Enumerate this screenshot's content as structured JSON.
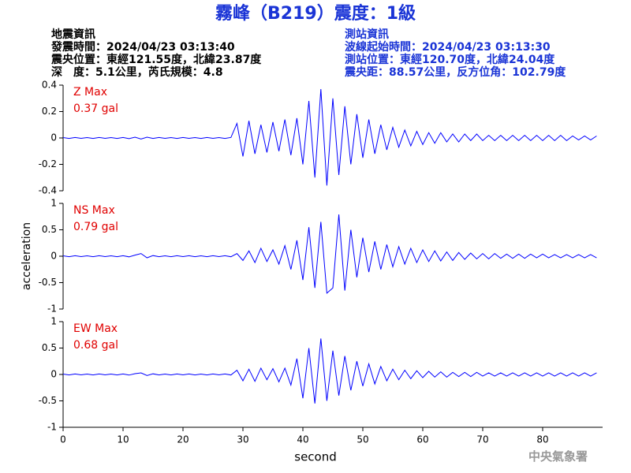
{
  "header": {
    "title": "霧峰（B219）震度：1級"
  },
  "info_left": [
    "地震資訊",
    "發震時間：2024/04/23 03:13:40",
    "震央位置：東經121.55度，北緯23.87度",
    "深　度：5.1公里，芮氏規模：4.8"
  ],
  "info_right": [
    "測站資訊",
    "波線起始時間：2024/04/23 03:13:30",
    "測站位置：東經120.70度，北緯24.04度",
    "震央距：88.57公里，反方位角：102.79度"
  ],
  "ylabel": "acceleration",
  "xlabel": "second",
  "footer": "中央氣象署",
  "chart_data": [
    {
      "type": "line",
      "name": "Z Max",
      "annotation": "0.37 gal",
      "color": "#0000ff",
      "xlim": [
        0,
        90
      ],
      "ylim": [
        -0.4,
        0.4
      ],
      "yticks": [
        -0.4,
        -0.2,
        0,
        0.2,
        0.4
      ],
      "x": [
        0,
        1,
        2,
        3,
        4,
        5,
        6,
        7,
        8,
        9,
        10,
        11,
        12,
        13,
        14,
        15,
        16,
        17,
        18,
        19,
        20,
        21,
        22,
        23,
        24,
        25,
        26,
        27,
        28,
        29,
        30,
        31,
        32,
        33,
        34,
        35,
        36,
        37,
        38,
        39,
        40,
        41,
        42,
        43,
        44,
        45,
        46,
        47,
        48,
        49,
        50,
        51,
        52,
        53,
        54,
        55,
        56,
        57,
        58,
        59,
        60,
        61,
        62,
        63,
        64,
        65,
        66,
        67,
        68,
        69,
        70,
        71,
        72,
        73,
        74,
        75,
        76,
        77,
        78,
        79,
        80,
        81,
        82,
        83,
        84,
        85,
        86,
        87,
        88,
        89
      ],
      "values": [
        0.003,
        -0.004,
        0.004,
        -0.003,
        0.003,
        -0.004,
        0.004,
        -0.003,
        0.003,
        -0.004,
        0.004,
        -0.005,
        0.006,
        -0.008,
        0.006,
        -0.004,
        0.004,
        -0.003,
        0.003,
        -0.004,
        0.004,
        -0.003,
        0.003,
        -0.004,
        0.004,
        -0.003,
        0.003,
        -0.004,
        0.004,
        0.11,
        -0.14,
        0.13,
        -0.12,
        0.1,
        -0.11,
        0.12,
        -0.1,
        0.14,
        -0.13,
        0.15,
        -0.2,
        0.28,
        -0.3,
        0.37,
        -0.36,
        0.3,
        -0.28,
        0.24,
        -0.2,
        0.18,
        -0.15,
        0.14,
        -0.12,
        0.1,
        -0.09,
        0.08,
        -0.07,
        0.06,
        -0.06,
        0.05,
        -0.05,
        0.04,
        -0.04,
        0.04,
        -0.03,
        0.03,
        -0.03,
        0.03,
        -0.02,
        0.03,
        -0.02,
        0.02,
        -0.02,
        0.02,
        -0.02,
        0.02,
        -0.02,
        0.02,
        -0.02,
        0.02,
        -0.02,
        0.02,
        -0.02,
        0.02,
        -0.02,
        0.015,
        -0.015,
        0.015,
        -0.015,
        0.015
      ]
    },
    {
      "type": "line",
      "name": "NS Max",
      "annotation": "0.79 gal",
      "color": "#0000ff",
      "xlim": [
        0,
        90
      ],
      "ylim": [
        -1,
        1
      ],
      "yticks": [
        -1,
        -0.5,
        0,
        0.5,
        1
      ],
      "x": [
        0,
        1,
        2,
        3,
        4,
        5,
        6,
        7,
        8,
        9,
        10,
        11,
        12,
        13,
        14,
        15,
        16,
        17,
        18,
        19,
        20,
        21,
        22,
        23,
        24,
        25,
        26,
        27,
        28,
        29,
        30,
        31,
        32,
        33,
        34,
        35,
        36,
        37,
        38,
        39,
        40,
        41,
        42,
        43,
        44,
        45,
        46,
        47,
        48,
        49,
        50,
        51,
        52,
        53,
        54,
        55,
        56,
        57,
        58,
        59,
        60,
        61,
        62,
        63,
        64,
        65,
        66,
        67,
        68,
        69,
        70,
        71,
        72,
        73,
        74,
        75,
        76,
        77,
        78,
        79,
        80,
        81,
        82,
        83,
        84,
        85,
        86,
        87,
        88,
        89
      ],
      "values": [
        0.008,
        -0.01,
        0.01,
        -0.008,
        0.008,
        -0.01,
        0.01,
        -0.008,
        0.008,
        -0.01,
        0.01,
        -0.012,
        0.02,
        0.05,
        -0.03,
        0.012,
        -0.01,
        0.008,
        -0.01,
        0.01,
        -0.008,
        0.01,
        -0.01,
        0.008,
        -0.01,
        0.01,
        -0.008,
        0.01,
        -0.01,
        0.05,
        -0.08,
        0.1,
        -0.12,
        0.15,
        -0.1,
        0.12,
        -0.15,
        0.2,
        -0.25,
        0.3,
        -0.45,
        0.55,
        -0.6,
        0.65,
        -0.7,
        -0.6,
        0.79,
        -0.65,
        0.5,
        -0.4,
        0.35,
        -0.3,
        0.28,
        -0.25,
        0.22,
        -0.2,
        0.18,
        -0.15,
        0.15,
        -0.12,
        0.12,
        -0.1,
        0.1,
        -0.09,
        0.08,
        -0.08,
        0.07,
        -0.06,
        0.06,
        -0.05,
        0.05,
        -0.05,
        0.05,
        -0.04,
        0.04,
        -0.04,
        0.04,
        -0.04,
        0.04,
        -0.03,
        0.04,
        -0.03,
        0.03,
        -0.03,
        0.03,
        -0.03,
        0.03,
        -0.03,
        0.03,
        -0.03
      ]
    },
    {
      "type": "line",
      "name": "EW Max",
      "annotation": "0.68 gal",
      "color": "#0000ff",
      "xlim": [
        0,
        90
      ],
      "ylim": [
        -1,
        1
      ],
      "yticks": [
        -1,
        -0.5,
        0,
        0.5,
        1
      ],
      "xticks": [
        0,
        10,
        20,
        30,
        40,
        50,
        60,
        70,
        80
      ],
      "x": [
        0,
        1,
        2,
        3,
        4,
        5,
        6,
        7,
        8,
        9,
        10,
        11,
        12,
        13,
        14,
        15,
        16,
        17,
        18,
        19,
        20,
        21,
        22,
        23,
        24,
        25,
        26,
        27,
        28,
        29,
        30,
        31,
        32,
        33,
        34,
        35,
        36,
        37,
        38,
        39,
        40,
        41,
        42,
        43,
        44,
        45,
        46,
        47,
        48,
        49,
        50,
        51,
        52,
        53,
        54,
        55,
        56,
        57,
        58,
        59,
        60,
        61,
        62,
        63,
        64,
        65,
        66,
        67,
        68,
        69,
        70,
        71,
        72,
        73,
        74,
        75,
        76,
        77,
        78,
        79,
        80,
        81,
        82,
        83,
        84,
        85,
        86,
        87,
        88,
        89
      ],
      "values": [
        0.008,
        -0.01,
        0.01,
        -0.008,
        0.008,
        -0.01,
        0.01,
        -0.008,
        0.008,
        -0.01,
        0.01,
        -0.012,
        0.015,
        0.03,
        -0.02,
        0.012,
        -0.01,
        0.008,
        -0.01,
        0.01,
        -0.008,
        0.01,
        -0.01,
        0.008,
        -0.01,
        0.01,
        -0.008,
        0.01,
        -0.01,
        0.08,
        -0.12,
        0.1,
        -0.13,
        0.12,
        -0.1,
        0.11,
        -0.14,
        0.12,
        -0.2,
        0.3,
        -0.45,
        0.5,
        -0.55,
        0.68,
        -0.5,
        0.45,
        -0.4,
        0.35,
        -0.3,
        0.25,
        -0.22,
        0.2,
        -0.18,
        0.15,
        -0.12,
        0.1,
        -0.1,
        0.08,
        -0.08,
        0.07,
        -0.06,
        0.06,
        -0.05,
        0.05,
        -0.05,
        0.04,
        -0.04,
        0.04,
        -0.04,
        0.04,
        -0.03,
        0.03,
        -0.03,
        0.03,
        -0.03,
        0.03,
        -0.03,
        0.03,
        -0.03,
        0.03,
        -0.03,
        0.03,
        -0.03,
        0.03,
        -0.03,
        0.03,
        -0.03,
        0.03,
        -0.03,
        0.03
      ]
    }
  ]
}
